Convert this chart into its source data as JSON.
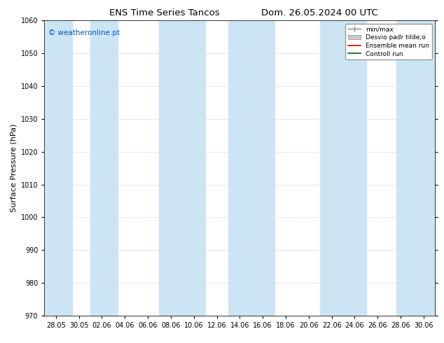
{
  "title_left": "ENS Time Series Tancos",
  "title_right": "Dom. 26.05.2024 00 UTC",
  "ylabel": "Surface Pressure (hPa)",
  "ylim": [
    970,
    1060
  ],
  "yticks": [
    970,
    980,
    990,
    1000,
    1010,
    1020,
    1030,
    1040,
    1050,
    1060
  ],
  "xtick_labels": [
    "28.05",
    "30.05",
    "02.06",
    "04.06",
    "06.06",
    "08.06",
    "10.06",
    "12.06",
    "14.06",
    "16.06",
    "18.06",
    "20.06",
    "22.06",
    "24.06",
    "26.06",
    "28.06",
    "30.06"
  ],
  "watermark": "© weatheronline.pt",
  "watermark_color": "#0055cc",
  "bg_color": "#ffffff",
  "plot_bg_color": "#ffffff",
  "band_color": "#cce5f5",
  "legend_labels": [
    "min/max",
    "Desvio padr tilde;o",
    "Ensemble mean run",
    "Controll run"
  ],
  "legend_colors": [
    "#aaaaaa",
    "#cccccc",
    "#cc0000",
    "#006600"
  ],
  "title_fontsize": 9.5,
  "tick_fontsize": 7,
  "ylabel_fontsize": 8,
  "watermark_fontsize": 7.5
}
